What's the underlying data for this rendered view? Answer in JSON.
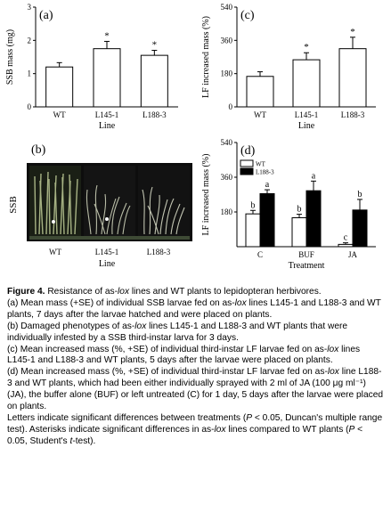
{
  "figure_label": "Figure 4.",
  "caption": {
    "title_prefix": "Resistance of as-",
    "title_italic": "lox",
    "title_suffix": " lines and WT plants to lepidopteran herbivores.",
    "a_prefix": "(a) Mean mass (+SE) of individual SSB larvae fed on as-",
    "a_italic": "lox",
    "a_suffix": " lines L145-1 and L188-3 and WT plants, 7 days after the larvae hatched and were placed on plants.",
    "b_prefix": "(b) Damaged phenotypes of as-",
    "b_italic": "lox",
    "b_suffix": " lines L145-1 and L188-3 and WT plants that were individually infested by a SSB third-instar larva for 3 days.",
    "c_prefix": "(c) Mean increased mass (%, +SE) of individual third-instar LF larvae fed on as-",
    "c_italic": "lox",
    "c_suffix": " lines L145-1 and L188-3 and WT plants, 5 days after the larvae were placed on plants.",
    "d_prefix": "(d) Mean increased mass (%, +SE) of individual third-instar LF larvae fed on as-",
    "d_italic": "lox",
    "d_suffix": " line L188-3 and WT plants, which had been either individually sprayed with 2 ml of JA (100 μg ml⁻¹) (JA), the buffer alone (BUF) or left untreated (C) for 1 day, 5 days after the larvae were placed on plants.",
    "letters_prefix": "Letters indicate significant differences between treatments (",
    "letters_p": "P",
    "letters_mid": " < 0.05, Duncan's multiple range test). Asterisks indicate significant differences in as-",
    "letters_italic": "lox",
    "letters_mid2": " lines compared to WT plants (",
    "letters_p2": "P",
    "letters_suffix": " < 0.05, Student's ",
    "letters_t": "t",
    "letters_end": "-test)."
  },
  "panel_b": {
    "label": "(b)",
    "side_label": "SSB",
    "xlabel": "Line",
    "tick_labels": [
      "WT",
      "L145-1",
      "L188-3"
    ]
  },
  "colors": {
    "bar_open": "#ffffff",
    "bar_filled": "#000000",
    "axis": "#000000",
    "photo_bg": "#0d0d0d",
    "leaf": "#9aa57a"
  },
  "chart_data": [
    {
      "panel": "a",
      "label": "(a)",
      "type": "bar",
      "categories": [
        "WT",
        "L145-1",
        "L188-3"
      ],
      "values": [
        1.2,
        1.75,
        1.55
      ],
      "errors": [
        0.13,
        0.22,
        0.15
      ],
      "annotations": [
        "",
        "*",
        "*"
      ],
      "xlabel": "Line",
      "ylabel": "SSB mass (mg)",
      "ylim": [
        0,
        3
      ],
      "yticks": [
        0,
        1,
        2,
        3
      ],
      "grid": false
    },
    {
      "panel": "c",
      "label": "(c)",
      "type": "bar",
      "categories": [
        "WT",
        "L145-1",
        "L188-3"
      ],
      "values": [
        165,
        255,
        315
      ],
      "errors": [
        25,
        38,
        62
      ],
      "annotations": [
        "",
        "*",
        "*"
      ],
      "xlabel": "Line",
      "ylabel": "LF increased mass (%)",
      "ylim": [
        0,
        540
      ],
      "yticks": [
        0,
        180,
        360,
        540
      ],
      "grid": false
    },
    {
      "panel": "d",
      "label": "(d)",
      "type": "bar",
      "categories": [
        "C",
        "BUF",
        "JA"
      ],
      "series": [
        {
          "name": "WT",
          "values": [
            170,
            150,
            12
          ],
          "errors": [
            18,
            18,
            8
          ],
          "letters": [
            "b",
            "b",
            "c"
          ],
          "color": "#ffffff"
        },
        {
          "name": "L188-3",
          "values": [
            275,
            290,
            190
          ],
          "errors": [
            20,
            50,
            55
          ],
          "letters": [
            "a",
            "a",
            "b"
          ],
          "color": "#000000"
        }
      ],
      "xlabel": "Treatment",
      "ylabel": "LF increased mass (%)",
      "ylim": [
        0,
        540
      ],
      "yticks": [
        180,
        360,
        540
      ],
      "legend_position": "top-left",
      "grid": false
    }
  ]
}
